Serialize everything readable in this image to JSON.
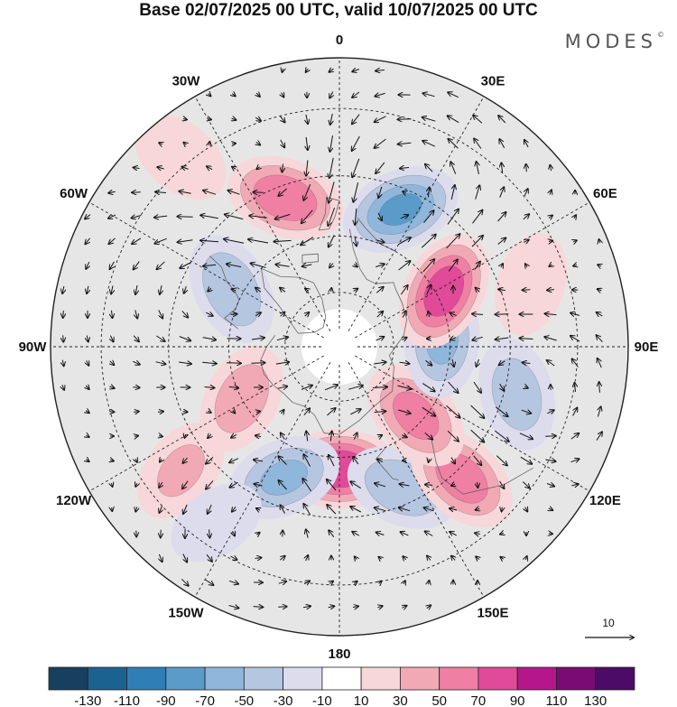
{
  "title": "Base 02/07/2025 00 UTC, valid 10/07/2025 00 UTC",
  "brand": {
    "name": "MODES",
    "mark": "©"
  },
  "longitude_labels": [
    {
      "text": "180",
      "lon": 180
    },
    {
      "text": "150E",
      "lon": 150
    },
    {
      "text": "120E",
      "lon": 120
    },
    {
      "text": "90E",
      "lon": 90
    },
    {
      "text": "60E",
      "lon": 60
    },
    {
      "text": "30E",
      "lon": 30
    },
    {
      "text": "0",
      "lon": 0
    },
    {
      "text": "30W",
      "lon": -30
    },
    {
      "text": "60W",
      "lon": -60
    },
    {
      "text": "90W",
      "lon": -90
    },
    {
      "text": "120W",
      "lon": -120
    },
    {
      "text": "150W",
      "lon": -150
    }
  ],
  "reference_vector": {
    "label": "10"
  },
  "colorbar": {
    "ticks": [
      "-130",
      "-110",
      "-90",
      "-70",
      "-50",
      "-30",
      "-10",
      "10",
      "30",
      "50",
      "70",
      "90",
      "110",
      "130"
    ],
    "colors": [
      "#16405e",
      "#1c6290",
      "#2f7fb4",
      "#5b9bc9",
      "#8fb6db",
      "#b5c6e1",
      "#dcdced",
      "#ffffff",
      "#f7d7d9",
      "#f1a9b6",
      "#ef7fa3",
      "#e04a98",
      "#b5178a",
      "#7a0a74",
      "#4b0b66"
    ]
  },
  "map": {
    "projection": "north-polar-stereographic",
    "center_lat": 90,
    "colors": {
      "background_anomaly": "#e6e6e6",
      "pole_cap": "#ffffff",
      "grid": "#222222",
      "coast": "#666666"
    },
    "anomalies": [
      {
        "lon": 180,
        "lat": 57,
        "value": 85
      },
      {
        "lon": 156,
        "lat": 49,
        "value": -45
      },
      {
        "lon": 137,
        "lat": 43,
        "value": 60
      },
      {
        "lon": 132,
        "lat": 62,
        "value": 55
      },
      {
        "lon": 105,
        "lat": 42,
        "value": -40
      },
      {
        "lon": 86,
        "lat": 62,
        "value": -50
      },
      {
        "lon": 62,
        "lat": 58,
        "value": 80
      },
      {
        "lon": 72,
        "lat": 38,
        "value": 25
      },
      {
        "lon": 24,
        "lat": 50,
        "value": -70
      },
      {
        "lon": -20,
        "lat": 48,
        "value": 65
      },
      {
        "lon": -40,
        "lat": 28,
        "value": 25
      },
      {
        "lon": -62,
        "lat": 57,
        "value": -45
      },
      {
        "lon": -118,
        "lat": 60,
        "value": 40
      },
      {
        "lon": -128,
        "lat": 38,
        "value": 30
      },
      {
        "lon": -157,
        "lat": 52,
        "value": -50
      },
      {
        "lon": -145,
        "lat": 35,
        "value": -20
      }
    ]
  }
}
